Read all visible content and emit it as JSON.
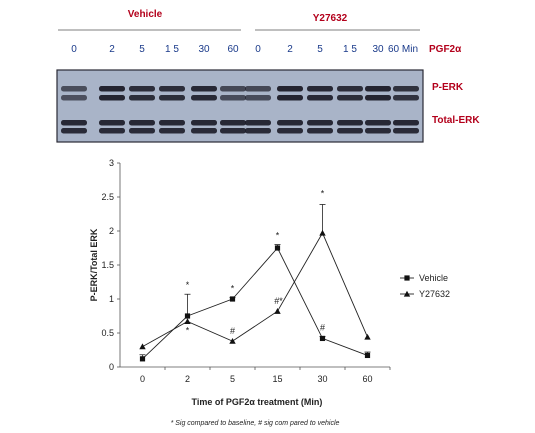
{
  "blot": {
    "group_labels": [
      "Vehicle",
      "Y27632"
    ],
    "time_labels": [
      "0",
      "2",
      "5",
      "1 5",
      "30",
      "60",
      "0",
      "2",
      "5",
      "1 5",
      "30",
      "60 Min"
    ],
    "treatment_label": "PGF2α",
    "band_labels": [
      "P-ERK",
      "Total-ERK"
    ],
    "colors": {
      "label_red": "#b3001b",
      "label_blue": "#1a3a8a",
      "membrane": "#a9b4c8",
      "band": "#1c1c28"
    }
  },
  "chart_data": {
    "type": "line",
    "categories": [
      "0",
      "2",
      "5",
      "15",
      "30",
      "60"
    ],
    "xlabel": "Time of PGF2α treatment (Min)",
    "ylabel": "P-ERK/Total ERK",
    "ylim": [
      0,
      3
    ],
    "yticks": [
      0,
      0.5,
      1,
      1.5,
      2,
      2.5,
      3
    ],
    "ytick_labels": [
      "0",
      "0.5",
      "1",
      "1.5",
      "2",
      "2.5",
      "3"
    ],
    "grid": false,
    "legend_position": "right",
    "series": [
      {
        "name": "Vehicle",
        "marker": "square",
        "values": [
          0.12,
          0.75,
          1.0,
          1.75,
          0.42,
          0.17
        ],
        "error": [
          0.06,
          0.32,
          0.02,
          0.05,
          0.03,
          0.05
        ],
        "annotations": [
          "",
          "*",
          "*",
          "*",
          "#",
          ""
        ]
      },
      {
        "name": "Y27632",
        "marker": "triangle",
        "values": [
          0.3,
          0.67,
          0.38,
          0.82,
          1.97,
          0.44
        ],
        "error": [
          0.0,
          0.0,
          0.0,
          0.0,
          0.42,
          0.0
        ],
        "annotations": [
          "",
          "*",
          "#",
          "#*",
          "*",
          ""
        ]
      }
    ],
    "footnote": "* Sig compared to baseline, # sig com pared to vehicle"
  }
}
